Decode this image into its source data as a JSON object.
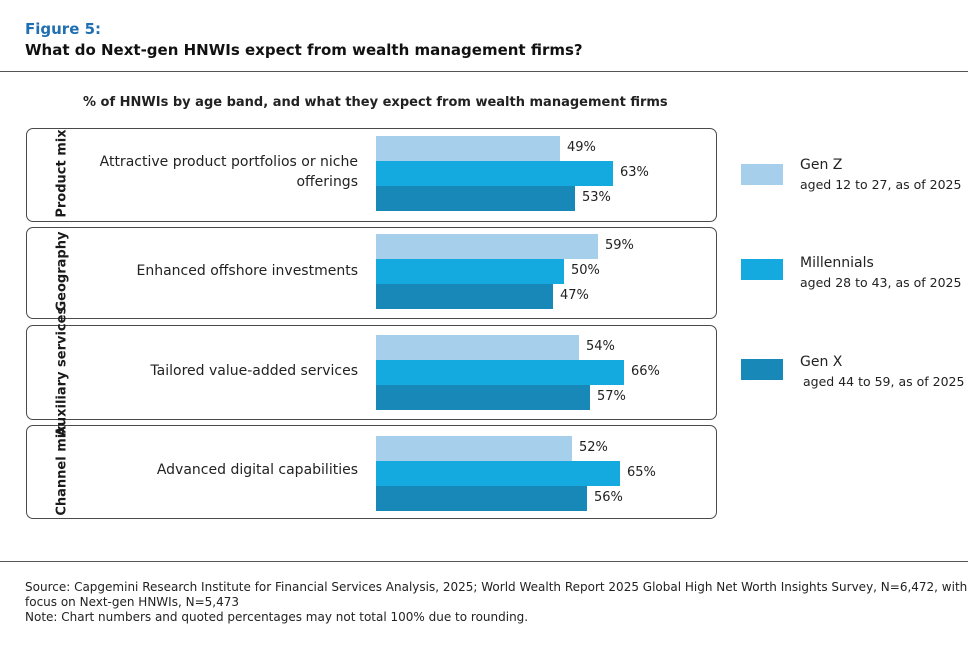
{
  "figure_label": "Figure 5:",
  "figure_title": "What do Next-gen HNWIs expect from wealth management firms?",
  "chart_data": {
    "type": "bar",
    "orientation": "horizontal",
    "title": "% of HNWIs by age band, and what they expect from wealth management firms",
    "unit": "%",
    "groups": [
      "Product mix",
      "Geography",
      "Auxiliary services",
      "Channel mix"
    ],
    "categories": [
      "Attractive product portfolios or niche offerings",
      "Enhanced offshore investments",
      "Tailored value-added services",
      "Advanced digital capabilities"
    ],
    "series": [
      {
        "name": "Gen Z",
        "description": "aged 12 to 27, as of 2025",
        "color": "#a6cfec",
        "values": [
          49,
          59,
          54,
          52
        ]
      },
      {
        "name": "Millennials",
        "description": "aged 28 to 43, as of 2025",
        "color": "#14aadf",
        "values": [
          63,
          50,
          66,
          65
        ]
      },
      {
        "name": "Gen X",
        "description": "aged 44 to 59, as of 2025",
        "color": "#1788b8",
        "values": [
          53,
          47,
          57,
          56
        ]
      }
    ],
    "xlim": [
      0,
      100
    ]
  },
  "source_text": "Source: Capgemini Research Institute for Financial Services Analysis, 2025; World Wealth Report 2025 Global High Net Worth Insights Survey, N=6,472, with focus on Next-gen HNWIs, N=5,473",
  "note_text": "Note: Chart numbers and quoted percentages may not total 100% due to rounding."
}
